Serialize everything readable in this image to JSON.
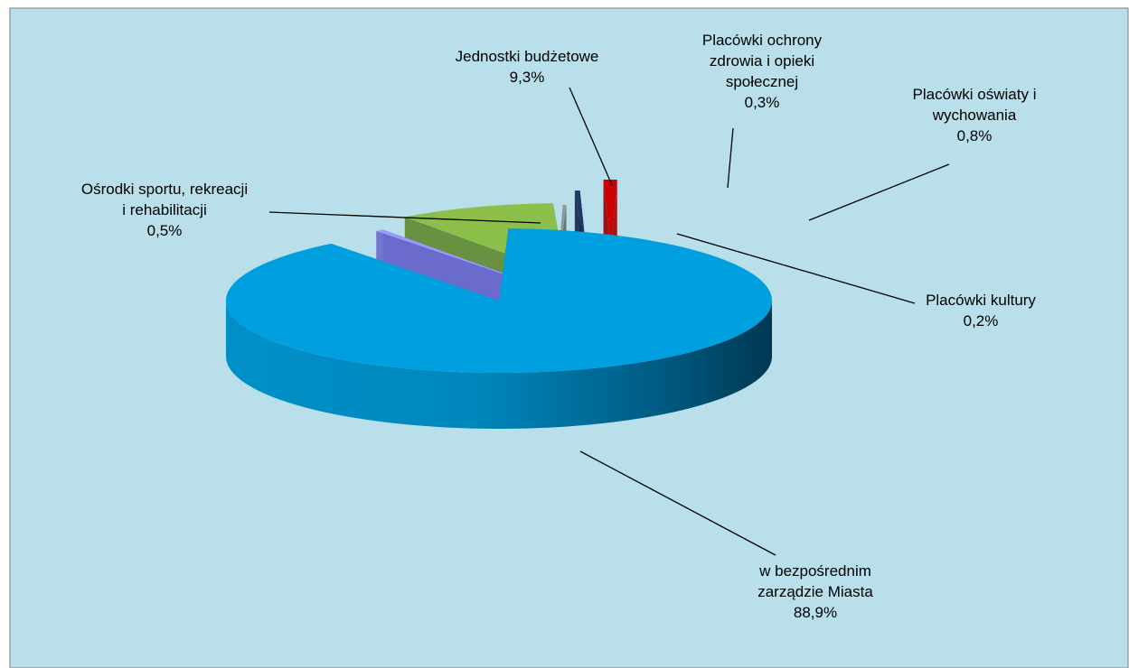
{
  "chart_data": {
    "type": "pie",
    "variant": "3d-exploded",
    "slices": [
      {
        "name": "w bezpośrednim zarządzie Miasta",
        "label_lines": [
          "w bezpośrednim",
          "zarządzie Miasta"
        ],
        "value": 88.9,
        "value_label": "88,9%",
        "color": "#00a0e0"
      },
      {
        "name": "Ośrodki sportu, rekreacji i rehabilitacji",
        "label_lines": [
          "Ośrodki sportu, rekreacji",
          "i rehabilitacji"
        ],
        "value": 0.5,
        "value_label": "0,5%",
        "color": "#9999ff"
      },
      {
        "name": "Jednostki budżetowe",
        "label_lines": [
          "Jednostki budżetowe"
        ],
        "value": 9.3,
        "value_label": "9,3%",
        "color": "#8cbf4a"
      },
      {
        "name": "Placówki ochrony zdrowia i opieki społecznej",
        "label_lines": [
          "Placówki ochrony",
          "zdrowia i opieki",
          "społecznej"
        ],
        "value": 0.3,
        "value_label": "0,3%",
        "color": "#1f3864"
      },
      {
        "name": "Placówki oświaty i wychowania",
        "label_lines": [
          "Placówki oświaty i",
          "wychowania"
        ],
        "value": 0.8,
        "value_label": "0,8%",
        "color": "#cc0000"
      },
      {
        "name": "Placówki kultury",
        "label_lines": [
          "Placówki kultury"
        ],
        "value": 0.2,
        "value_label": "0,2%",
        "color": "#8c9a9c"
      }
    ],
    "legend": "none",
    "background_color": "#b9dfea"
  }
}
